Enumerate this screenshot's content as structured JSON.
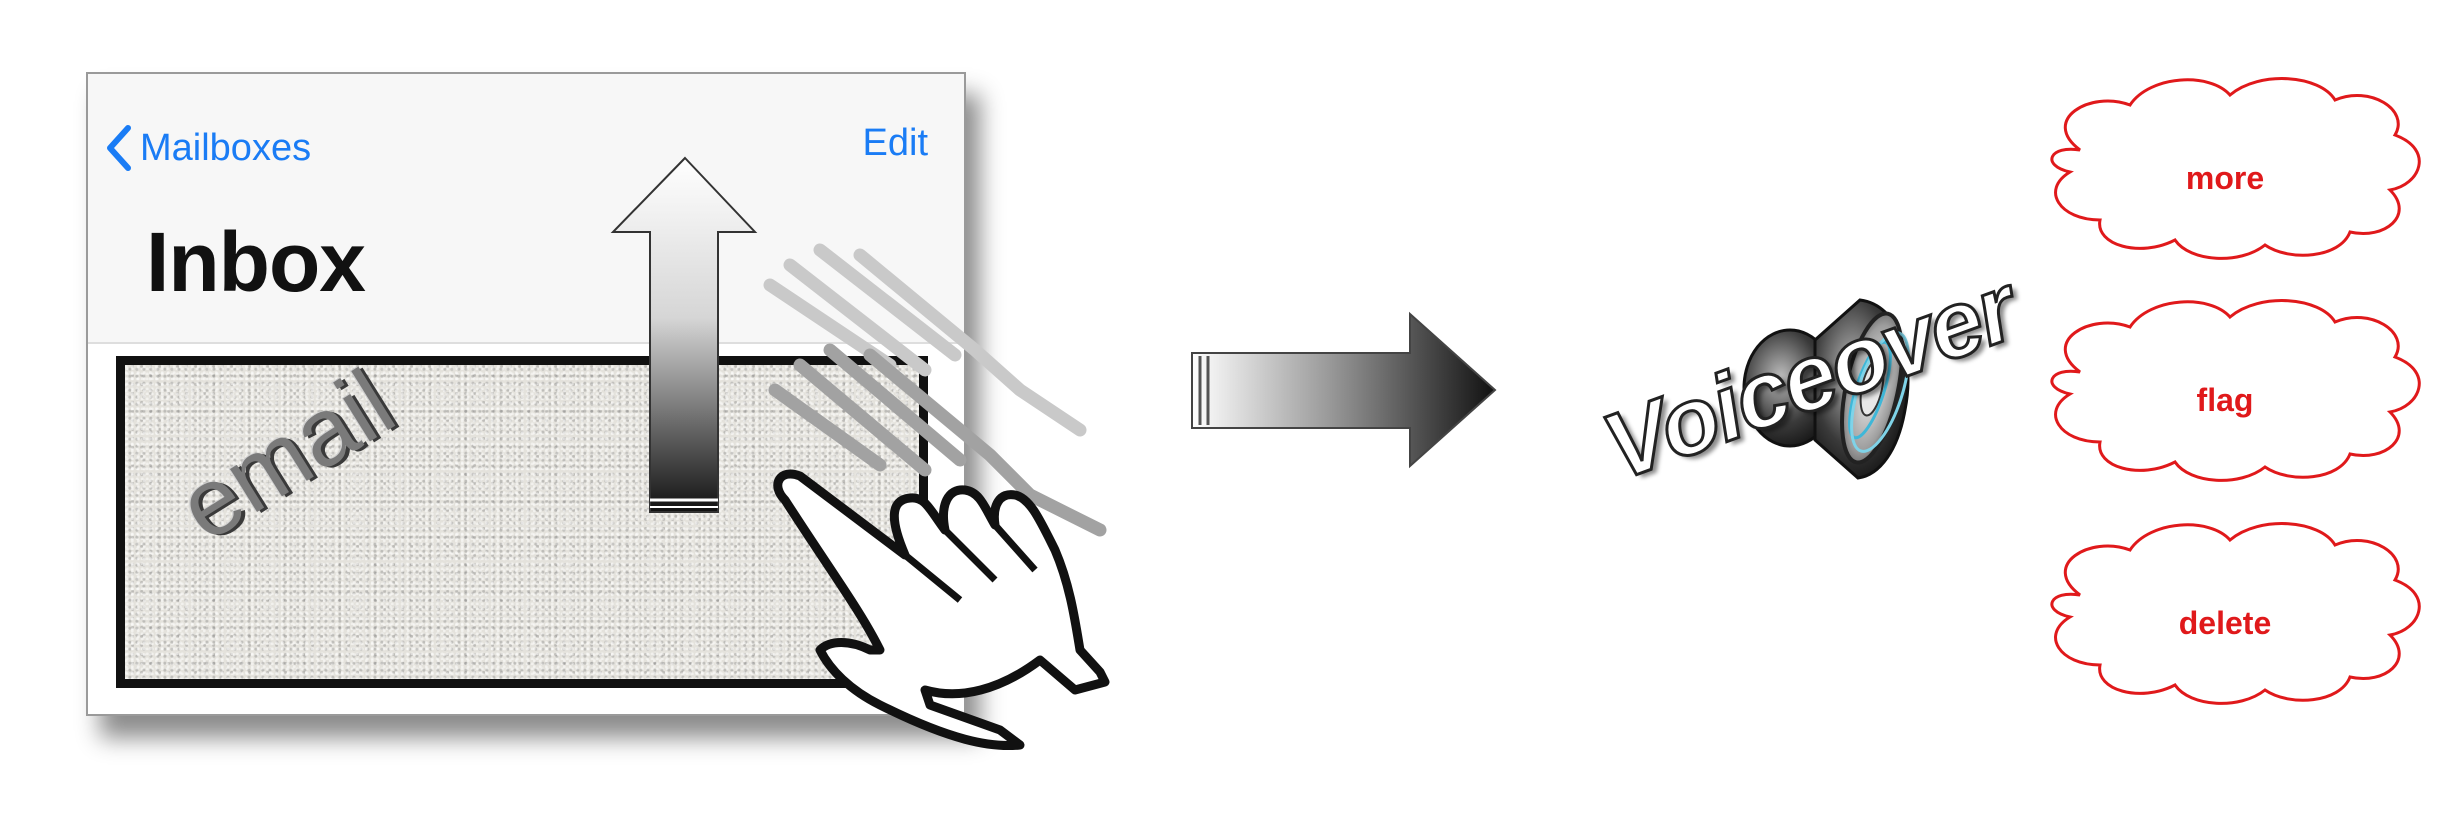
{
  "mail": {
    "back_label": "Mailboxes",
    "edit_label": "Edit",
    "title": "Inbox",
    "email_label": "email"
  },
  "voiceover": {
    "label": "Voiceover"
  },
  "actions": [
    {
      "label": "more"
    },
    {
      "label": "flag"
    },
    {
      "label": "delete"
    }
  ],
  "colors": {
    "ios_blue": "#1a7cf5",
    "action_red": "#e0191b"
  }
}
